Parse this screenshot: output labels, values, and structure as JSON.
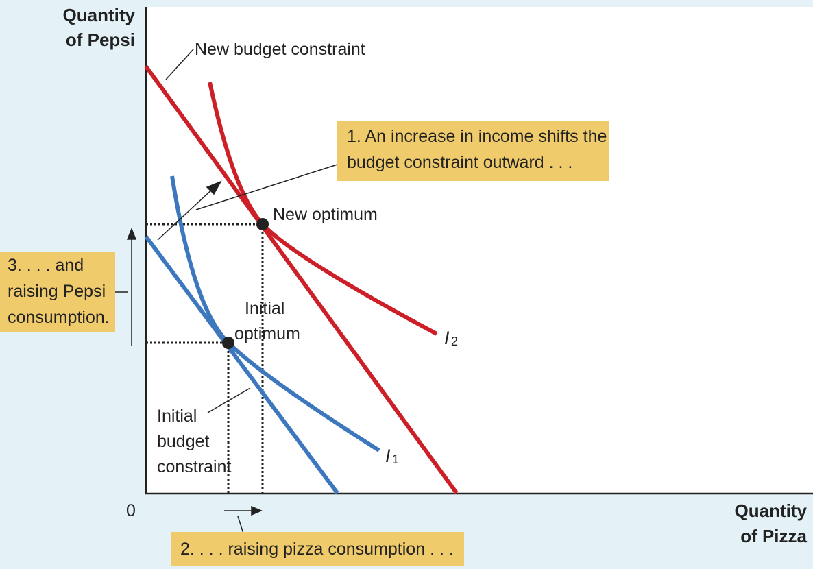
{
  "axes": {
    "y_title_line1": "Quantity",
    "y_title_line2": "of Pepsi",
    "x_title_line1": "Quantity",
    "x_title_line2": "of Pizza",
    "origin": "0"
  },
  "labels": {
    "new_budget": "New budget constraint",
    "new_optimum": "New optimum",
    "initial_optimum_line1": "Initial",
    "initial_optimum_line2": "optimum",
    "initial_budget_line1": "Initial",
    "initial_budget_line2": "budget",
    "initial_budget_line3": "constraint",
    "i2_letter": "I",
    "i2_sub": "2",
    "i1_letter": "I",
    "i1_sub": "1"
  },
  "callouts": {
    "c1_line1": "1. An increase in income shifts the",
    "c1_line2": "budget constraint outward . . .",
    "c2": "2. . . . raising pizza consumption . . .",
    "c3_line1": "3. . . . and",
    "c3_line2": "raising Pepsi",
    "c3_line3": "consumption."
  },
  "colors": {
    "background": "#e4f2f8",
    "plot_bg": "#ffffff",
    "red": "#cc1f28",
    "blue": "#3d78bf",
    "callout_fill": "#f0cb6b",
    "ink": "#222222"
  }
}
